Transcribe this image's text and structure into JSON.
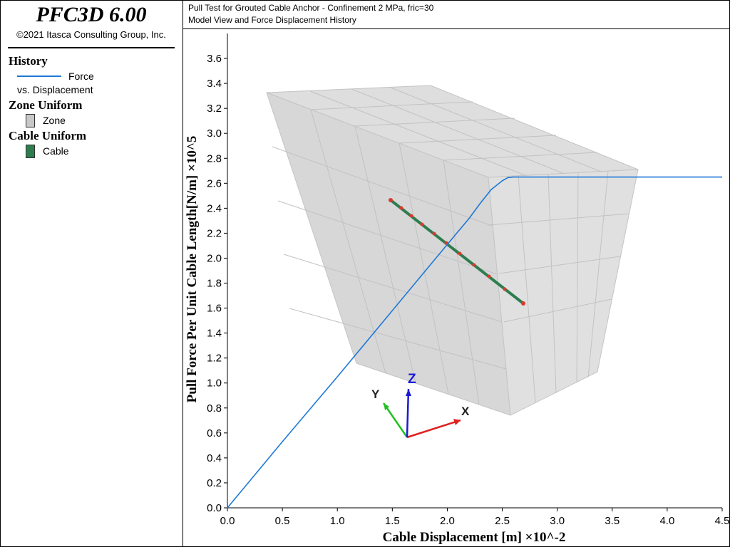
{
  "app": {
    "name": "PFC3D 6.00",
    "copyright": "©2021 Itasca Consulting Group, Inc."
  },
  "legend": {
    "history_heading": "History",
    "history_item_line1": "Force",
    "history_item_line2": "vs. Displacement",
    "zone_heading": "Zone Uniform",
    "zone_item": "Zone",
    "cable_heading": "Cable Uniform",
    "cable_item": "Cable"
  },
  "plot": {
    "title_line1": "Pull Test for Grouted Cable Anchor - Confinement 2 MPa, fric=30",
    "title_line2": "Model View and Force Displacement History"
  },
  "axes3d": {
    "x_label": "X",
    "y_label": "Y",
    "z_label": "Z"
  },
  "colors": {
    "force_line": "#1e78d7",
    "zone_fill": "#c8c8c8",
    "cable": "#2e7d4f",
    "cable_nodes": "#d93a2b",
    "axis_x": "#e02020",
    "axis_y": "#20c020",
    "axis_z": "#1a1ad6"
  },
  "chart_data": {
    "type": "line",
    "xlabel": "Cable Displacement [m] ×10^-2",
    "ylabel": "Pull Force Per Unit Cable Length[N/m] ×10^5",
    "xlim": [
      0,
      4.5
    ],
    "ylim": [
      0,
      3.8
    ],
    "x_ticks": [
      "0.0",
      "0.5",
      "1.0",
      "1.5",
      "2.0",
      "2.5",
      "3.0",
      "3.5",
      "4.0",
      "4.5"
    ],
    "y_ticks": [
      "0.0",
      "0.2",
      "0.4",
      "0.6",
      "0.8",
      "1.0",
      "1.2",
      "1.4",
      "1.6",
      "1.8",
      "2.0",
      "2.2",
      "2.4",
      "2.6",
      "2.8",
      "3.0",
      "3.2",
      "3.4",
      "3.6"
    ],
    "grid": false,
    "series": [
      {
        "name": "Force vs. Displacement",
        "x": [
          0.0,
          0.5,
          1.0,
          1.5,
          2.0,
          2.2,
          2.3,
          2.4,
          2.5,
          2.55,
          2.6,
          4.5
        ],
        "y": [
          0.0,
          0.53,
          1.05,
          1.58,
          2.11,
          2.32,
          2.44,
          2.55,
          2.62,
          2.645,
          2.65,
          2.65
        ]
      }
    ]
  }
}
